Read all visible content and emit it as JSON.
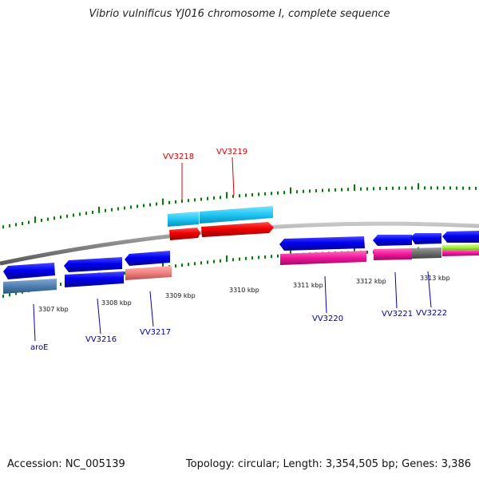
{
  "title": "Vibrio vulnificus YJ016 chromosome I, complete sequence",
  "footer": {
    "accession": "Accession: NC_005139",
    "summary": "Topology: circular; Length: 3,354,505 bp; Genes: 3,386"
  },
  "scale_labels": [
    "3307 kbp",
    "3308 kbp",
    "3309 kbp",
    "3310 kbp",
    "3311 kbp",
    "3312 kbp",
    "3313 kbp"
  ],
  "genes": [
    {
      "name": "aroE",
      "color": "#0000aa",
      "strand": "-"
    },
    {
      "name": "VV3216",
      "color": "#0000aa",
      "strand": "-"
    },
    {
      "name": "VV3217",
      "color": "#0000aa",
      "strand": "-"
    },
    {
      "name": "VV3218",
      "color": "#dd0000",
      "strand": "+"
    },
    {
      "name": "VV3219",
      "color": "#dd0000",
      "strand": "+"
    },
    {
      "name": "VV3220",
      "color": "#0000aa",
      "strand": "-"
    },
    {
      "name": "VV3221",
      "color": "#0000aa",
      "strand": "-"
    },
    {
      "name": "VV3222",
      "color": "#0000aa",
      "strand": "-"
    }
  ],
  "colors": {
    "backbone": "#8a8a8a",
    "gene_blue": "#0000ee",
    "gene_red": "#ee0000",
    "cds_lightblue": "#1ec6f4",
    "cds_steel": "#4f7fb0",
    "cds_salmon": "#f08080",
    "cds_pink": "#f0169a",
    "cds_gray": "#6e6e6e",
    "cds_green": "#a6f03a",
    "tick_green": "#008000"
  }
}
